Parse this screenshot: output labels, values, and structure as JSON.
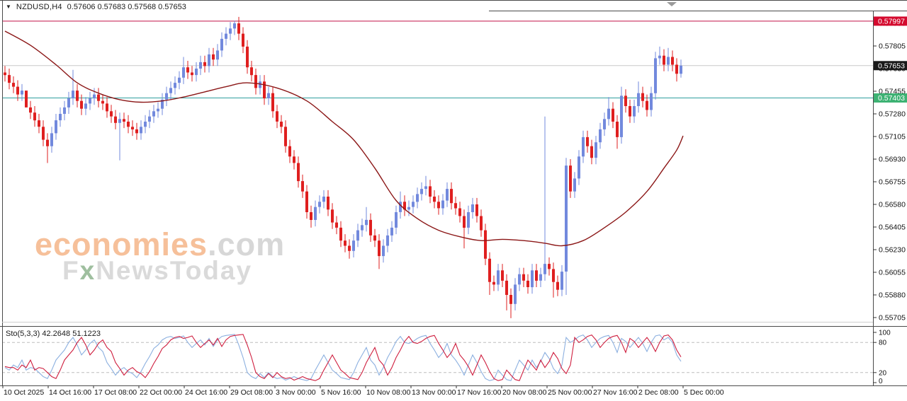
{
  "window": {
    "title_symbol": "NZDUSD,H4",
    "title_ohlc": "0.57606 0.57683 0.57568 0.57653"
  },
  "watermark": {
    "brand": "economies",
    "brand_suffix": ".com",
    "sub_f": "F",
    "sub_x": "x",
    "sub_rest": "NewsToday"
  },
  "colors": {
    "candle_up": "#7289dd",
    "candle_down": "#df1f1f",
    "ma_line": "#8b1616",
    "sto_k": "#8cb0e0",
    "sto_d": "#cf1f3f",
    "frame": "#4a4a4a",
    "grid_dashed": "#bdbdbd",
    "axis_text": "#111111",
    "shift_marker": "#9a9a9a"
  },
  "chart_data": {
    "type": "candlestick",
    "symbol": "NZDUSD",
    "timeframe": "H4",
    "title": "NZDUSD,H4 0.57606 0.57683 0.57568 0.57653",
    "ohlc_display": {
      "open": "0.57606",
      "high": "0.57683",
      "low": "0.57568",
      "close": "0.57653"
    },
    "y_axis": {
      "ticks": [
        "0.57980",
        "0.57805",
        "0.57630",
        "0.57455",
        "0.57280",
        "0.57105",
        "0.56930",
        "0.56755",
        "0.56580",
        "0.56405",
        "0.56230",
        "0.56055",
        "0.55880",
        "0.55705"
      ],
      "visible_min": 0.5562,
      "visible_max": 0.5814
    },
    "x_axis": {
      "labels": [
        "10 Oct 2025",
        "14 Oct 16:00",
        "17 Oct 08:00",
        "22 Oct 00:00",
        "24 Oct 16:00",
        "29 Oct 08:00",
        "3 Nov 00:00",
        "5 Nov 16:00",
        "10 Nov 08:00",
        "13 Nov 00:00",
        "17 Nov 16:00",
        "20 Nov 08:00",
        "25 Nov 00:00",
        "27 Nov 16:00",
        "2 Dec 08:00",
        "5 Dec 00:00"
      ]
    },
    "price_lines": [
      {
        "name": "resistance-line",
        "price": 0.57997,
        "label": "0.57997",
        "line_color": "#c31048",
        "badge_bg": "#d40a2e",
        "badge_fg": "#ffffff"
      },
      {
        "name": "current-price-line",
        "price": 0.57653,
        "label": "0.57653",
        "line_color": "#c9c9c9",
        "badge_bg": "#1a1a1a",
        "badge_fg": "#ffffff"
      },
      {
        "name": "support-line",
        "price": 0.57403,
        "label": "0.57403",
        "line_color": "#2f9f9f",
        "badge_bg": "#3db273",
        "badge_fg": "#ffffff"
      }
    ],
    "candles": {
      "first_open": 0.576,
      "default_wick": 0.0005,
      "closes": [
        0.5758,
        0.5752,
        0.5749,
        0.5743,
        0.5746,
        0.5733,
        0.5729,
        0.5723,
        0.5718,
        0.5708,
        0.5703,
        0.5713,
        0.5723,
        0.5728,
        0.5733,
        0.574,
        0.5746,
        0.5738,
        0.5732,
        0.5736,
        0.574,
        0.5743,
        0.5738,
        0.5736,
        0.573,
        0.5726,
        0.5721,
        0.5724,
        0.5722,
        0.5718,
        0.5716,
        0.5713,
        0.5718,
        0.5722,
        0.5726,
        0.573,
        0.5732,
        0.5739,
        0.5744,
        0.5748,
        0.5752,
        0.5756,
        0.5764,
        0.576,
        0.5758,
        0.5763,
        0.5768,
        0.5765,
        0.5774,
        0.577,
        0.5777,
        0.5786,
        0.579,
        0.5794,
        0.5798,
        0.579,
        0.578,
        0.5764,
        0.5758,
        0.5748,
        0.5753,
        0.574,
        0.5744,
        0.573,
        0.5722,
        0.5718,
        0.5703,
        0.5695,
        0.569,
        0.5676,
        0.5668,
        0.5652,
        0.5646,
        0.5656,
        0.566,
        0.5664,
        0.5654,
        0.5644,
        0.564,
        0.563,
        0.5626,
        0.5622,
        0.563,
        0.5638,
        0.5642,
        0.5646,
        0.5634,
        0.563,
        0.5618,
        0.5626,
        0.5634,
        0.564,
        0.5652,
        0.566,
        0.5654,
        0.5656,
        0.566,
        0.5666,
        0.567,
        0.5672,
        0.5664,
        0.566,
        0.5655,
        0.5661,
        0.567,
        0.5659,
        0.5655,
        0.5649,
        0.564,
        0.5652,
        0.5658,
        0.5649,
        0.5638,
        0.5616,
        0.5598,
        0.5596,
        0.5607,
        0.5599,
        0.5588,
        0.5581,
        0.5596,
        0.5604,
        0.5599,
        0.5594,
        0.5607,
        0.5599,
        0.5604,
        0.5612,
        0.5608,
        0.5598,
        0.5592,
        0.5606,
        0.5688,
        0.5668,
        0.5678,
        0.5695,
        0.571,
        0.5703,
        0.5694,
        0.5706,
        0.5716,
        0.5724,
        0.5732,
        0.5722,
        0.571,
        0.5742,
        0.5734,
        0.5726,
        0.5734,
        0.5744,
        0.5738,
        0.5731,
        0.5744,
        0.5771,
        0.5773,
        0.5766,
        0.5772,
        0.5766,
        0.5759,
        0.57653
      ],
      "high_overrides": {
        "5": 0.5718,
        "16": 0.5762,
        "42": 0.5772,
        "54": 0.58,
        "85": 0.5656,
        "93": 0.5668,
        "99": 0.568,
        "127": 0.5726,
        "132": 0.5694,
        "142": 0.5741,
        "145": 0.5749,
        "149": 0.5753,
        "153": 0.5776,
        "154": 0.578,
        "156": 0.5779,
        "159": 0.577
      },
      "low_overrides": {
        "5": 0.5718,
        "10": 0.569,
        "27": 0.5692,
        "72": 0.564,
        "81": 0.5616,
        "88": 0.5608,
        "108": 0.5624,
        "114": 0.5588,
        "118": 0.5576,
        "119": 0.557,
        "129": 0.5586,
        "132": 0.5588,
        "144": 0.5701,
        "158": 0.5753,
        "159": 0.5756
      }
    },
    "ma_keyframes": [
      [
        0,
        0.5792
      ],
      [
        6,
        0.5781
      ],
      [
        12,
        0.5766
      ],
      [
        17,
        0.5752
      ],
      [
        22,
        0.5744
      ],
      [
        27,
        0.5739
      ],
      [
        32,
        0.5737
      ],
      [
        37,
        0.5738
      ],
      [
        42,
        0.5741
      ],
      [
        47,
        0.5745
      ],
      [
        52,
        0.5749
      ],
      [
        57,
        0.5752
      ],
      [
        64,
        0.5748
      ],
      [
        71,
        0.5738
      ],
      [
        77,
        0.5722
      ],
      [
        82,
        0.5708
      ],
      [
        87,
        0.5686
      ],
      [
        92,
        0.5661
      ],
      [
        97,
        0.5647
      ],
      [
        102,
        0.5638
      ],
      [
        107,
        0.5633
      ],
      [
        112,
        0.563
      ],
      [
        117,
        0.5631
      ],
      [
        122,
        0.563
      ],
      [
        127,
        0.5628
      ],
      [
        131,
        0.5626
      ],
      [
        136,
        0.563
      ],
      [
        141,
        0.564
      ],
      [
        146,
        0.5652
      ],
      [
        151,
        0.5668
      ],
      [
        155,
        0.5686
      ],
      [
        158,
        0.57
      ],
      [
        159.5,
        0.5711
      ]
    ],
    "stochastic": {
      "label": "Sto(5,3,3)",
      "k_display": "42.2648",
      "d_display": "51.1223",
      "levels": [
        100,
        80,
        20,
        0
      ],
      "dashed_levels": [
        80,
        20
      ],
      "k": [
        30,
        25,
        35,
        30,
        45,
        25,
        30,
        28,
        20,
        12,
        8,
        25,
        45,
        55,
        65,
        80,
        90,
        75,
        55,
        65,
        78,
        85,
        70,
        62,
        40,
        28,
        15,
        25,
        30,
        22,
        18,
        10,
        22,
        38,
        52,
        68,
        75,
        85,
        90,
        92,
        88,
        90,
        93,
        80,
        70,
        78,
        85,
        75,
        88,
        72,
        85,
        92,
        94,
        95,
        96,
        75,
        50,
        20,
        12,
        8,
        18,
        10,
        20,
        12,
        8,
        10,
        5,
        8,
        12,
        8,
        6,
        4,
        8,
        25,
        40,
        55,
        40,
        25,
        18,
        10,
        8,
        6,
        20,
        40,
        55,
        70,
        45,
        35,
        15,
        30,
        50,
        65,
        82,
        92,
        80,
        78,
        82,
        88,
        92,
        94,
        78,
        65,
        50,
        60,
        78,
        55,
        45,
        32,
        15,
        35,
        55,
        40,
        22,
        8,
        4,
        6,
        25,
        15,
        6,
        4,
        25,
        45,
        35,
        25,
        45,
        30,
        42,
        60,
        48,
        28,
        18,
        35,
        90,
        80,
        85,
        92,
        95,
        85,
        70,
        80,
        88,
        92,
        94,
        80,
        60,
        88,
        82,
        70,
        80,
        90,
        78,
        62,
        80,
        93,
        95,
        85,
        90,
        80,
        55,
        42.26
      ],
      "d": [
        32,
        30,
        30,
        25,
        35,
        30,
        45,
        25,
        30,
        28,
        20,
        12,
        8,
        25,
        45,
        55,
        65,
        80,
        90,
        75,
        55,
        65,
        78,
        85,
        70,
        62,
        40,
        28,
        15,
        25,
        30,
        22,
        18,
        10,
        22,
        38,
        52,
        68,
        75,
        85,
        90,
        92,
        88,
        90,
        93,
        80,
        70,
        78,
        85,
        75,
        88,
        72,
        85,
        92,
        94,
        95,
        96,
        75,
        50,
        20,
        12,
        8,
        18,
        10,
        20,
        12,
        8,
        10,
        5,
        8,
        12,
        8,
        6,
        4,
        8,
        25,
        40,
        55,
        40,
        25,
        18,
        10,
        8,
        6,
        20,
        40,
        55,
        70,
        45,
        35,
        15,
        30,
        50,
        65,
        82,
        92,
        80,
        78,
        82,
        88,
        92,
        94,
        78,
        65,
        50,
        60,
        78,
        55,
        45,
        32,
        15,
        35,
        55,
        40,
        22,
        8,
        4,
        6,
        25,
        15,
        6,
        4,
        25,
        45,
        35,
        25,
        45,
        30,
        42,
        60,
        48,
        28,
        18,
        35,
        90,
        80,
        85,
        92,
        95,
        85,
        70,
        80,
        88,
        92,
        94,
        80,
        60,
        88,
        82,
        70,
        80,
        90,
        78,
        62,
        80,
        93,
        95,
        85,
        65,
        51.12
      ]
    }
  }
}
